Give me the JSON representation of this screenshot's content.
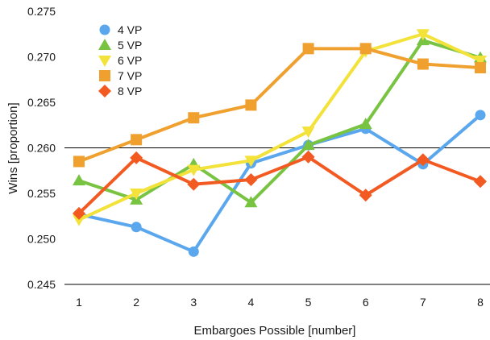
{
  "chart_data": {
    "type": "line",
    "xlabel": "Embargoes Possible [number]",
    "ylabel": "Wins [proportion]",
    "categories": [
      "1",
      "2",
      "3",
      "4",
      "5",
      "6",
      "7",
      "8"
    ],
    "ylim": [
      0.245,
      0.275
    ],
    "yticks": [
      "0.245",
      "0.250",
      "0.255",
      "0.260",
      "0.265",
      "0.270",
      "0.275"
    ],
    "reference_line": 0.26,
    "legend_position": "top-left",
    "series": [
      {
        "name": "4 VP",
        "color": "#5aa7ee",
        "marker": "circle",
        "values": [
          0.2527,
          0.2513,
          0.2486,
          0.2583,
          0.2603,
          0.2621,
          0.2582,
          0.2636
        ]
      },
      {
        "name": "5 VP",
        "color": "#79c342",
        "marker": "triangle-up",
        "values": [
          0.2564,
          0.2543,
          0.2582,
          0.254,
          0.2603,
          0.2626,
          0.2718,
          0.2699
        ]
      },
      {
        "name": "6 VP",
        "color": "#f3e23a",
        "marker": "triangle-down",
        "values": [
          0.2521,
          0.255,
          0.2576,
          0.2586,
          0.2618,
          0.2706,
          0.2725,
          0.2696
        ]
      },
      {
        "name": "7 VP",
        "color": "#f0a02e",
        "marker": "square",
        "values": [
          0.2585,
          0.2609,
          0.2633,
          0.2647,
          0.2709,
          0.2709,
          0.2692,
          0.2688
        ]
      },
      {
        "name": "8 VP",
        "color": "#f25a22",
        "marker": "diamond",
        "values": [
          0.2528,
          0.2589,
          0.256,
          0.2565,
          0.259,
          0.2548,
          0.2587,
          0.2563
        ]
      }
    ]
  }
}
